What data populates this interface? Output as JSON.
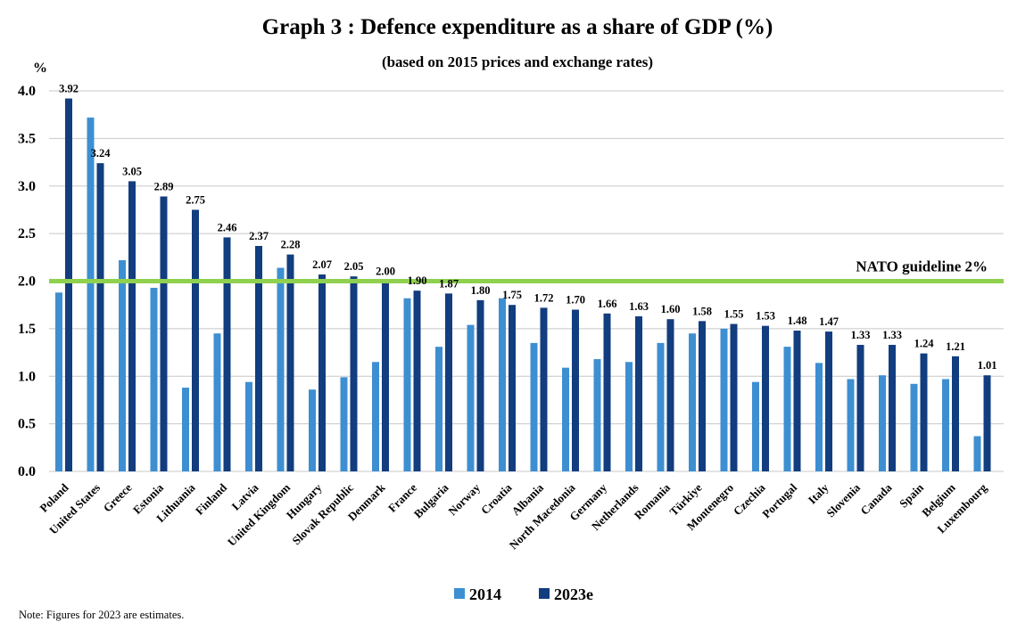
{
  "chart_data": {
    "type": "bar",
    "title": "Graph 3 : Defence expenditure as a share of GDP (%)",
    "subtitle": "(based on 2015 prices and exchange rates)",
    "ylabel": "%",
    "xlabel": "",
    "ylim": [
      0,
      4.0
    ],
    "yticks": [
      "0.0",
      "0.5",
      "1.0",
      "1.5",
      "2.0",
      "2.5",
      "3.0",
      "3.5",
      "4.0"
    ],
    "grid": "horizontal",
    "legend_position": "bottom",
    "categories": [
      "Poland",
      "United States",
      "Greece",
      "Estonia",
      "Lithuania",
      "Finland",
      "Latvia",
      "United Kingdom",
      "Hungary",
      "Slovak Republic",
      "Denmark",
      "France",
      "Bulgaria",
      "Norway",
      "Croatia",
      "Albania",
      "North Macedonia",
      "Germany",
      "Netherlands",
      "Romania",
      "Türkiye",
      "Montenegro",
      "Czechia",
      "Portugal",
      "Italy",
      "Slovenia",
      "Canada",
      "Spain",
      "Belgium",
      "Luxembourg"
    ],
    "series": [
      {
        "name": "2014",
        "color": "#3d8fd1",
        "values": [
          1.88,
          3.72,
          2.22,
          1.93,
          0.88,
          1.45,
          0.94,
          2.14,
          0.86,
          0.99,
          1.15,
          1.82,
          1.31,
          1.54,
          1.82,
          1.35,
          1.09,
          1.18,
          1.15,
          1.35,
          1.45,
          1.5,
          0.94,
          1.31,
          1.14,
          0.97,
          1.01,
          0.92,
          0.97,
          0.37
        ]
      },
      {
        "name": "2023e",
        "color": "#123d7f",
        "values": [
          3.92,
          3.24,
          3.05,
          2.89,
          2.75,
          2.46,
          2.37,
          2.28,
          2.07,
          2.05,
          2.0,
          1.9,
          1.87,
          1.8,
          1.75,
          1.72,
          1.7,
          1.66,
          1.63,
          1.6,
          1.58,
          1.55,
          1.53,
          1.48,
          1.47,
          1.33,
          1.33,
          1.24,
          1.21,
          1.01
        ],
        "data_labels": [
          "3.92",
          "3.24",
          "3.05",
          "2.89",
          "2.75",
          "2.46",
          "2.37",
          "2.28",
          "2.07",
          "2.05",
          "2.00",
          "1.90",
          "1.87",
          "1.80",
          "1.75",
          "1.72",
          "1.70",
          "1.66",
          "1.63",
          "1.60",
          "1.58",
          "1.55",
          "1.53",
          "1.48",
          "1.47",
          "1.33",
          "1.33",
          "1.24",
          "1.21",
          "1.01"
        ]
      }
    ],
    "reference_line": {
      "value": 2.0,
      "label": "NATO guideline 2%",
      "color": "#8fd14f"
    },
    "gridline_color": "#c8c8c8",
    "note": "Note: Figures for 2023 are estimates."
  }
}
